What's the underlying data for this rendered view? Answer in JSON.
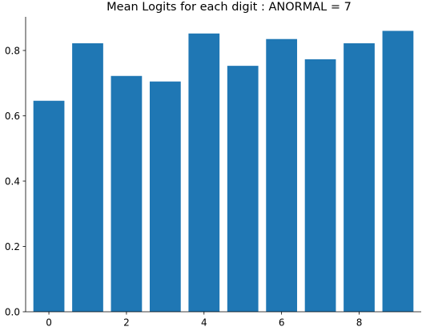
{
  "chart_data": {
    "type": "bar",
    "title": "Mean Logits for each digit : ANORMAL = 7",
    "categories": [
      0,
      1,
      2,
      3,
      4,
      5,
      6,
      7,
      8,
      9
    ],
    "values": [
      0.646,
      0.822,
      0.722,
      0.705,
      0.852,
      0.753,
      0.835,
      0.773,
      0.822,
      0.86
    ],
    "bar_color": "#1f77b4",
    "xlim": [
      -0.6,
      9.6
    ],
    "ylim": [
      0,
      0.903
    ],
    "x_ticks": [
      0,
      2,
      4,
      6,
      8
    ],
    "y_ticks": [
      "0.0",
      "0.2",
      "0.4",
      "0.6",
      "0.8"
    ],
    "xlabel": "",
    "ylabel": "",
    "grid": false
  }
}
